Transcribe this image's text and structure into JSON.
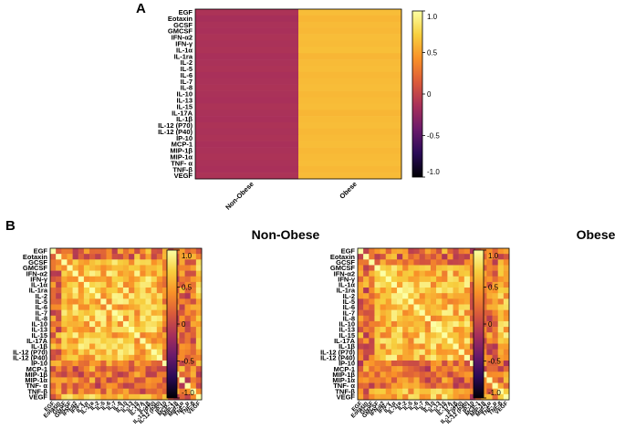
{
  "panels": {
    "a_label": "A",
    "b_label": "B"
  },
  "colorbar": {
    "min": -1.0,
    "max": 1.0,
    "ticks": [
      "1.0",
      "0.5",
      "0",
      "-0.5",
      "-1.0"
    ]
  },
  "colors": {
    "scale": [
      "#000004",
      "#2a0b57",
      "#6a1a6b",
      "#a8305a",
      "#db5b3a",
      "#f99128",
      "#f7cf3e",
      "#fcffa4"
    ]
  },
  "chart_data": [
    {
      "type": "heatmap",
      "panel": "A",
      "title": "",
      "rows": [
        "EGF",
        "Eotaxin",
        "GCSF",
        "GMCSF",
        "IFN-α2",
        "IFN-γ",
        "IL-1α",
        "IL-1ra",
        "IL-2",
        "IL-5",
        "IL-6",
        "IL-7",
        "IL-8",
        "IL-10",
        "IL-13",
        "IL-15",
        "IL-17A",
        "IL-1β",
        "IL-12 (P70)",
        "IL-12 (P40)",
        "IP-10",
        "MCP-1",
        "MIP-1β",
        "MIP-1α",
        "TNF- α",
        "TNF-β",
        "VEGF"
      ],
      "columns": [
        "Non-Obese",
        "Obese"
      ],
      "values": [
        [
          -0.12,
          0.63
        ],
        [
          -0.15,
          0.6
        ],
        [
          -0.13,
          0.62
        ],
        [
          -0.14,
          0.61
        ],
        [
          -0.12,
          0.63
        ],
        [
          -0.13,
          0.62
        ],
        [
          -0.12,
          0.64
        ],
        [
          -0.14,
          0.6
        ],
        [
          -0.13,
          0.62
        ],
        [
          -0.12,
          0.63
        ],
        [
          -0.14,
          0.61
        ],
        [
          -0.13,
          0.62
        ],
        [
          -0.12,
          0.63
        ],
        [
          -0.13,
          0.61
        ],
        [
          -0.14,
          0.62
        ],
        [
          -0.12,
          0.63
        ],
        [
          -0.13,
          0.6
        ],
        [
          -0.14,
          0.62
        ],
        [
          -0.12,
          0.63
        ],
        [
          -0.13,
          0.61
        ],
        [
          -0.12,
          0.62
        ],
        [
          -0.14,
          0.63
        ],
        [
          -0.13,
          0.61
        ],
        [
          -0.12,
          0.62
        ],
        [
          -0.13,
          0.63
        ],
        [
          -0.14,
          0.61
        ],
        [
          -0.12,
          0.62
        ]
      ],
      "colorbar_range": [
        -1.0,
        1.0
      ]
    },
    {
      "type": "heatmap",
      "panel": "B",
      "title": "Non-Obese",
      "labels": [
        "EGF",
        "Eotaxin",
        "GCSF",
        "GMCSF",
        "IFN-α2",
        "IFN-γ",
        "IL-1α",
        "IL-1ra",
        "IL-2",
        "IL-5",
        "IL-6",
        "IL-7",
        "IL-8",
        "IL-10",
        "IL-13",
        "IL-15",
        "IL-17A",
        "IL-1β",
        "IL-12 (P70)",
        "IL-12 (P40)",
        "IP-10",
        "MCP-1",
        "MIP-1β",
        "MIP-1α",
        "TNF- α",
        "TNF-β",
        "VEGF"
      ],
      "x_labels": [
        "EGF",
        "Eotaxin",
        "GCSF",
        "GMCSF",
        "IFN-α2",
        "IFN-γ",
        "IL-1α",
        "IL-1ra",
        "IL-2",
        "IL-5",
        "IL-6",
        "IL-7",
        "IL-8",
        "IL-10",
        "IL-13",
        "IL-15",
        "IL-17A",
        "IL-1β",
        "IL-12 (P70)",
        "IL-12 (P40)",
        "IP-10",
        "MCP-1",
        "MIP-1β",
        "MIP-1α",
        "TNF- α",
        "TNF-β",
        "VEGF"
      ],
      "diagonal": 1.0,
      "typical_value": 0.6,
      "colorbar_range": [
        -1.0,
        1.0
      ]
    },
    {
      "type": "heatmap",
      "panel": "B",
      "title": "Obese",
      "labels": [
        "EGF",
        "Eotaxin",
        "GCSF",
        "GMCSF",
        "IFN-α2",
        "IFN-γ",
        "IL-1α",
        "IL-1ra",
        "IL-2",
        "IL-5",
        "IL-6",
        "IL-7",
        "IL-8",
        "IL-10",
        "IL-13",
        "IL-15",
        "IL-17A",
        "IL-1β",
        "IL-12 (P70)",
        "IL-12 (P40)",
        "IP-10",
        "MCP-1",
        "MIP-1β",
        "MIP-1α",
        "TNF- α",
        "TNF-β",
        "VEGF"
      ],
      "x_labels": [
        "EGF",
        "Eotaxin",
        "GCSF",
        "GMCSF",
        "IFN-α2",
        "IFN-γ",
        "IL-1α",
        "IL-1ra",
        "IL-2",
        "IL-5",
        "IL-6",
        "IL-7",
        "IL-8",
        "IL-10",
        "IL-13",
        "IL-15",
        "IL-17A",
        "IL-1β",
        "IL-12 (P70)",
        "IL-12 (P40)",
        "IP-10",
        "MCP-1",
        "MIP-1β",
        "MIP-1α",
        "TNF- α",
        "TNF-β",
        "VEGF"
      ],
      "diagonal": 1.0,
      "typical_value": 0.6,
      "colorbar_range": [
        -1.0,
        1.0
      ]
    }
  ]
}
